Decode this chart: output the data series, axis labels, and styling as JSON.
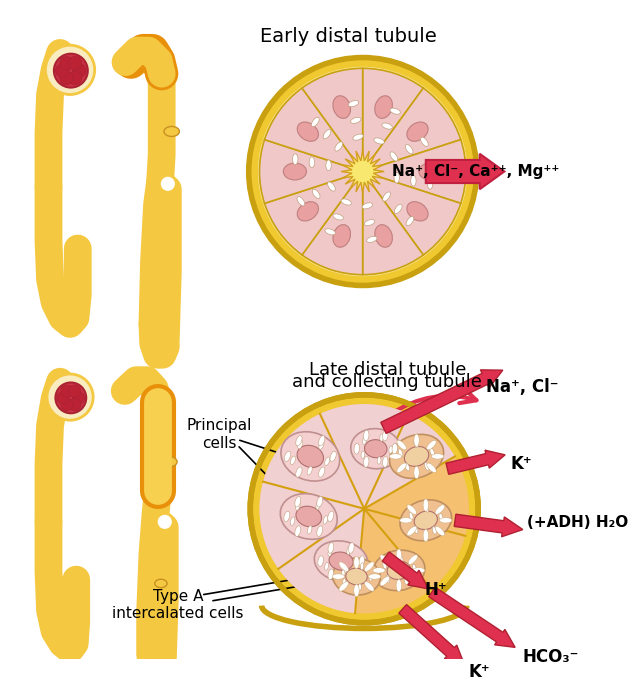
{
  "bg_color": "#ffffff",
  "tubule_color": "#F5C842",
  "tubule_color2": "#F0BA30",
  "tubule_highlight": "#E8900A",
  "glom_color": "#CC3344",
  "glom_dark": "#AA2233",
  "cell_pink_light": "#F5D8D8",
  "cell_pink_mid": "#EDB8B8",
  "cell_pink_dark": "#E09898",
  "cell_orange_light": "#F5C88A",
  "cell_orange_mid": "#E8B070",
  "outer_ring": "#F0C830",
  "outer_ring_edge": "#D4A010",
  "lumen_color": "#F5E870",
  "arrow_fill": "#E03050",
  "arrow_edge": "#C02040",
  "label_color": "#000000",
  "top_title": "Early distal tubule",
  "bottom_title_line1": "Late distal tubule",
  "bottom_title_line2": "and collecting tubule",
  "top_arrow_text": "Na⁺, Cl⁻, Ca⁺⁺, Mg⁺⁺",
  "label_na_cl": "Na⁺, Cl⁻",
  "label_adh": "(+ADH) H₂O",
  "label_k1": "K⁺",
  "label_h": "H⁺",
  "label_hco3": "HCO₃⁻",
  "label_k2": "K⁺",
  "label_principal": "Principal\ncells",
  "label_type_a": "Type A\nintercalated cells"
}
